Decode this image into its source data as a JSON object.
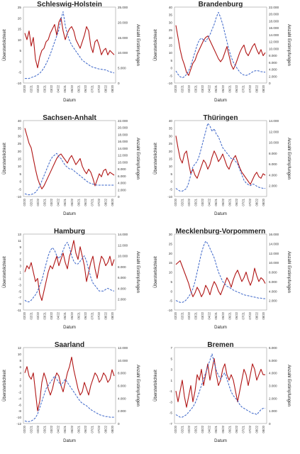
{
  "figure": {
    "y_left_label": "Übersterblichkeit",
    "y_right_label": "Anzahl Erstimpfungen",
    "x_label": "Datum",
    "x_ticks": [
      "02/20",
      "02/21",
      "02/22",
      "03/21",
      "03/22",
      "04/22",
      "05/21",
      "05/22",
      "06/21",
      "06/22",
      "07/21",
      "07/22",
      "08/22",
      "08/20"
    ],
    "colors": {
      "excess_mortality": "#b01515",
      "vaccinations": "#3a64c8"
    }
  },
  "chart_data": [
    {
      "type": "line",
      "title": "Schleswig-Holstein",
      "y_left": {
        "min": -10,
        "max": 25,
        "ticks": [
          -10,
          -5,
          0,
          5,
          10,
          15,
          20,
          25
        ]
      },
      "y_right": {
        "min": 0,
        "max": 25000,
        "ticks": [
          "0",
          "5.000",
          "10.000",
          "15.000",
          "20.000",
          "25.000"
        ]
      },
      "series": [
        {
          "name": "Übersterblichkeit",
          "axis": "left",
          "style": "solid",
          "values": [
            13,
            10,
            14,
            7,
            11,
            1,
            -3,
            2,
            5,
            6,
            9,
            10,
            13,
            15,
            17,
            12,
            18,
            20,
            14,
            10,
            13,
            15,
            16,
            14,
            10,
            8,
            6,
            9,
            12,
            16,
            14,
            7,
            4,
            9,
            10,
            7,
            3,
            5,
            6,
            3,
            5,
            4,
            3
          ]
        },
        {
          "name": "Anzahl Erstimpfungen",
          "axis": "right",
          "style": "dashed",
          "values": [
            1500,
            1500,
            1500,
            1800,
            2000,
            2300,
            2700,
            3200,
            4000,
            5000,
            6300,
            7800,
            9500,
            11500,
            13500,
            15500,
            17500,
            21000,
            23500,
            19000,
            16000,
            14000,
            12500,
            11500,
            10500,
            9500,
            8500,
            7500,
            7000,
            6500,
            6000,
            5500,
            5200,
            5000,
            4800,
            4600,
            4500,
            4400,
            4300,
            4000,
            3700,
            3500,
            3300
          ]
        }
      ]
    },
    {
      "type": "line",
      "title": "Brandenburg",
      "y_left": {
        "min": -10,
        "max": 40,
        "ticks": [
          -10,
          -5,
          0,
          5,
          10,
          15,
          20,
          25,
          30,
          35,
          40
        ]
      },
      "y_right": {
        "min": 0,
        "max": 22000,
        "ticks": [
          "0",
          "2.000",
          "4.000",
          "6.000",
          "8.000",
          "10.000",
          "12.000",
          "14.000",
          "16.000",
          "18.000",
          "20.000",
          "22.000"
        ]
      },
      "series": [
        {
          "name": "Übersterblichkeit",
          "axis": "left",
          "style": "solid",
          "values": [
            28,
            20,
            12,
            6,
            2,
            -3,
            -5,
            -1,
            3,
            5,
            9,
            12,
            15,
            18,
            20,
            21,
            18,
            15,
            12,
            9,
            6,
            4,
            6,
            10,
            14,
            8,
            2,
            -1,
            2,
            6,
            10,
            13,
            15,
            10,
            8,
            11,
            14,
            16,
            12,
            9,
            12,
            8,
            10
          ]
        },
        {
          "name": "Anzahl Erstimpfungen",
          "axis": "right",
          "style": "dashed",
          "values": [
            3500,
            2500,
            1800,
            1500,
            1800,
            2500,
            3500,
            5000,
            7000,
            9000,
            11000,
            12500,
            13000,
            12500,
            12000,
            13000,
            14000,
            15500,
            17000,
            19000,
            20500,
            19000,
            17000,
            14500,
            12000,
            9500,
            7500,
            6000,
            5000,
            4000,
            3200,
            2600,
            2300,
            2200,
            2400,
            2800,
            3200,
            3500,
            3600,
            3500,
            3300,
            3200,
            3100
          ]
        }
      ]
    },
    {
      "type": "line",
      "title": "Sachsen-Anhalt",
      "y_left": {
        "min": -10,
        "max": 40,
        "ticks": [
          -10,
          -5,
          0,
          5,
          10,
          15,
          20,
          25,
          30,
          35,
          40
        ]
      },
      "y_right": {
        "min": 0,
        "max": 22000,
        "ticks": [
          "0",
          "2.000",
          "4.000",
          "6.000",
          "8.000",
          "10.000",
          "12.000",
          "14.000",
          "16.000",
          "18.000",
          "20.000",
          "22.000"
        ]
      },
      "series": [
        {
          "name": "Übersterblichkeit",
          "axis": "left",
          "style": "solid",
          "values": [
            35,
            30,
            25,
            22,
            15,
            8,
            2,
            -2,
            -5,
            -3,
            0,
            3,
            6,
            9,
            12,
            15,
            17,
            18,
            16,
            14,
            12,
            15,
            17,
            14,
            11,
            13,
            15,
            10,
            7,
            5,
            8,
            6,
            2,
            -3,
            1,
            5,
            3,
            7,
            8,
            4,
            6,
            5,
            4
          ]
        },
        {
          "name": "Anzahl Erstimpfungen",
          "axis": "right",
          "style": "dashed",
          "values": [
            800,
            600,
            500,
            600,
            800,
            1200,
            2000,
            3000,
            4500,
            6000,
            7500,
            9000,
            10500,
            11500,
            12000,
            12500,
            11500,
            11000,
            10000,
            9000,
            8500,
            8000,
            8000,
            7500,
            7000,
            6500,
            6000,
            5500,
            5000,
            4500,
            4000,
            3800,
            3600,
            3400,
            3300,
            3300,
            3300,
            3300,
            3300,
            3300,
            3300,
            3300,
            3300
          ]
        }
      ]
    },
    {
      "type": "line",
      "title": "Thüringen",
      "y_left": {
        "min": -10,
        "max": 40,
        "ticks": [
          -10,
          -5,
          0,
          5,
          10,
          15,
          20,
          25,
          30,
          35,
          40
        ]
      },
      "y_right": {
        "min": 0,
        "max": 14000,
        "ticks": [
          "2.000",
          "4.000",
          "6.000",
          "8.000",
          "10.000",
          "12.000",
          "14.000"
        ]
      },
      "series": [
        {
          "name": "Übersterblichkeit",
          "axis": "left",
          "style": "solid",
          "values": [
            30,
            22,
            15,
            12,
            18,
            20,
            12,
            5,
            8,
            4,
            2,
            6,
            10,
            14,
            12,
            8,
            11,
            16,
            20,
            17,
            13,
            15,
            18,
            14,
            10,
            8,
            12,
            15,
            17,
            13,
            9,
            6,
            4,
            2,
            0,
            -2,
            1,
            4,
            6,
            3,
            2,
            5,
            4
          ]
        },
        {
          "name": "Anzahl Erstimpfungen",
          "axis": "right",
          "style": "dashed",
          "values": [
            1500,
            1200,
            1000,
            1000,
            1200,
            1500,
            2500,
            4000,
            5500,
            6000,
            6500,
            7500,
            9000,
            10500,
            12000,
            13500,
            13000,
            12000,
            12500,
            11500,
            11000,
            10000,
            9000,
            8500,
            8000,
            7500,
            7000,
            7000,
            6500,
            6000,
            5000,
            4000,
            3000,
            2500,
            2200,
            2000,
            2300,
            2200,
            1900,
            1700,
            1600,
            1500,
            1500
          ]
        }
      ]
    },
    {
      "type": "line",
      "title": "Hamburg",
      "y_left": {
        "min": -11,
        "max": 13,
        "ticks": [
          -11,
          -9,
          -7,
          -5,
          -3,
          -1,
          1,
          3,
          5,
          7,
          9,
          11,
          13
        ]
      },
      "y_right": {
        "min": 0,
        "max": 14000,
        "ticks": [
          "2.000",
          "4.000",
          "6.000",
          "8.000",
          "10.000",
          "12.000",
          "14.000"
        ]
      },
      "series": [
        {
          "name": "Übersterblichkeit",
          "axis": "left",
          "style": "solid",
          "values": [
            1,
            3,
            2,
            4,
            1,
            -2,
            -1,
            -6,
            -8,
            -5,
            -2,
            1,
            3,
            2,
            4,
            6,
            3,
            5,
            7,
            4,
            2,
            6,
            8,
            11,
            7,
            5,
            9,
            6,
            3,
            -2,
            1,
            4,
            6,
            2,
            -1,
            3,
            6,
            5,
            3,
            4,
            6,
            3,
            5
          ]
        },
        {
          "name": "Anzahl Erstimpfungen",
          "axis": "right",
          "style": "dashed",
          "values": [
            1800,
            1500,
            1500,
            1800,
            2300,
            2800,
            3500,
            4500,
            5500,
            7000,
            8500,
            10000,
            11000,
            11500,
            11000,
            10000,
            9500,
            10000,
            11000,
            12000,
            12500,
            11500,
            10000,
            9000,
            8500,
            8500,
            9000,
            9500,
            10000,
            9000,
            7500,
            6000,
            5000,
            4500,
            4000,
            3500,
            3500,
            3500,
            3800,
            4000,
            3800,
            3600,
            3500
          ]
        }
      ]
    },
    {
      "type": "line",
      "title": "Mecklenburg-Vorpommern",
      "y_left": {
        "min": -10,
        "max": 30,
        "ticks": [
          -10,
          -5,
          0,
          5,
          10,
          15,
          20,
          25,
          30
        ]
      },
      "y_right": {
        "min": 0,
        "max": 16000,
        "ticks": [
          "2.000",
          "4.000",
          "6.000",
          "8.000",
          "10.000",
          "12.000",
          "14.000",
          "16.000"
        ]
      },
      "series": [
        {
          "name": "Übersterblichkeit",
          "axis": "left",
          "style": "solid",
          "values": [
            14,
            15,
            16,
            13,
            10,
            7,
            4,
            0,
            -3,
            -1,
            2,
            0,
            -3,
            -1,
            3,
            1,
            -2,
            2,
            5,
            3,
            0,
            -2,
            1,
            4,
            7,
            5,
            2,
            6,
            9,
            11,
            8,
            5,
            7,
            10,
            6,
            3,
            6,
            12,
            8,
            5,
            7,
            6,
            4
          ]
        },
        {
          "name": "Anzahl Erstimpfungen",
          "axis": "right",
          "style": "dashed",
          "values": [
            2000,
            1800,
            1600,
            1600,
            1800,
            2200,
            2800,
            3500,
            4500,
            6000,
            8000,
            10000,
            12000,
            13500,
            14500,
            14000,
            13000,
            12000,
            11000,
            9500,
            8000,
            7000,
            6000,
            5500,
            5000,
            4800,
            4500,
            4200,
            4000,
            3800,
            3600,
            3400,
            3200,
            3100,
            3000,
            2900,
            2800,
            2700,
            2600,
            2500,
            2500,
            2400,
            2400
          ]
        }
      ]
    },
    {
      "type": "line",
      "title": "Saarland",
      "y_left": {
        "min": -12,
        "max": 12,
        "ticks": [
          -12,
          -10,
          -8,
          -6,
          -4,
          -2,
          0,
          2,
          4,
          6,
          8,
          10,
          12
        ]
      },
      "y_right": {
        "min": 0,
        "max": 12000,
        "ticks": [
          "0",
          "2.000",
          "4.000",
          "6.000",
          "8.000",
          "10.000",
          "12.000"
        ]
      },
      "series": [
        {
          "name": "Übersterblichkeit",
          "axis": "left",
          "style": "solid",
          "values": [
            4,
            6,
            3,
            2,
            4,
            -2,
            -8,
            -5,
            1,
            4,
            2,
            -1,
            -3,
            -1,
            2,
            4,
            3,
            0,
            -2,
            1,
            4,
            6,
            9,
            5,
            2,
            -1,
            -3,
            -2,
            1,
            -1,
            -3,
            0,
            2,
            4,
            3,
            1,
            2,
            4,
            3,
            1,
            2,
            5,
            3
          ]
        },
        {
          "name": "Anzahl Erstimpfungen",
          "axis": "right",
          "style": "dashed",
          "values": [
            400,
            300,
            300,
            400,
            600,
            900,
            1500,
            2500,
            3500,
            4500,
            5500,
            6000,
            6500,
            7000,
            7500,
            7000,
            6500,
            6000,
            6500,
            7000,
            6500,
            6000,
            5500,
            5000,
            4500,
            4000,
            3500,
            3200,
            3000,
            2800,
            2500,
            2200,
            2000,
            1800,
            1600,
            1400,
            1300,
            1200,
            1100,
            1100,
            1000,
            1000,
            1000
          ]
        }
      ]
    },
    {
      "type": "line",
      "title": "Bremen",
      "y_left": {
        "min": -7,
        "max": 7,
        "ticks": [
          -7,
          -5,
          -3,
          -1,
          1,
          3,
          5,
          7
        ]
      },
      "y_right": {
        "min": 0,
        "max": 6000,
        "ticks": [
          "0",
          "1.000",
          "2.000",
          "3.000",
          "4.000",
          "5.000",
          "6.000"
        ]
      },
      "series": [
        {
          "name": "Übersterblichkeit",
          "axis": "left",
          "style": "solid",
          "values": [
            -1,
            -3,
            -1,
            1,
            -2,
            -4,
            -2,
            0,
            -3,
            -1,
            2,
            1,
            3,
            0,
            2,
            4,
            1,
            3,
            5,
            2,
            0,
            1,
            3,
            4,
            2,
            1,
            2,
            1,
            -1,
            -3,
            -1,
            1,
            3,
            2,
            0,
            2,
            4,
            3,
            1,
            2,
            3,
            2,
            2
          ]
        },
        {
          "name": "Anzahl Erstimpfungen",
          "axis": "right",
          "style": "dashed",
          "values": [
            700,
            600,
            500,
            500,
            600,
            700,
            900,
            1100,
            1300,
            1600,
            2000,
            2500,
            3000,
            3500,
            4000,
            4500,
            5000,
            5500,
            4800,
            4200,
            3800,
            3500,
            3800,
            4000,
            3500,
            3000,
            2500,
            2200,
            2000,
            1800,
            1500,
            1300,
            1200,
            1100,
            1000,
            900,
            800,
            800,
            700,
            900,
            1100,
            1200,
            1200
          ]
        }
      ]
    }
  ]
}
